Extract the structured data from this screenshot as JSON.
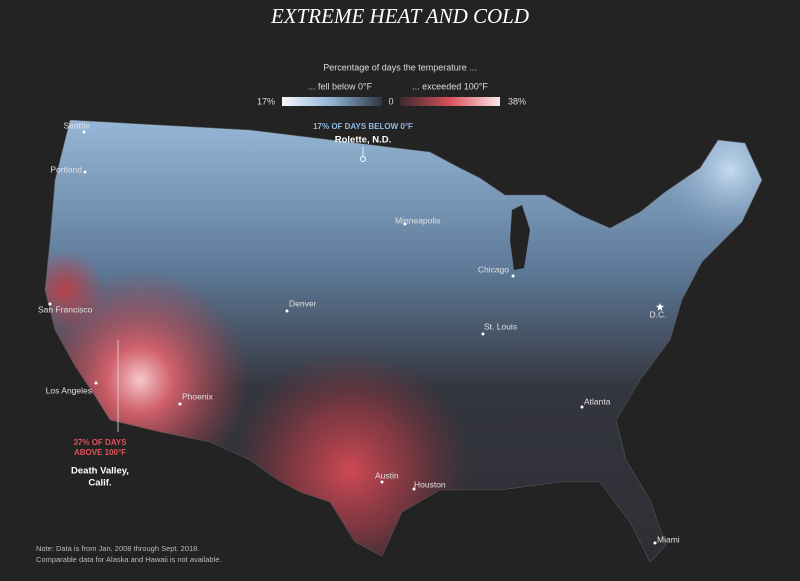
{
  "title": "EXTREME HEAT AND COLD",
  "legend": {
    "heading": "Percentage of days the temperature ...",
    "cold_label": "... fell below 0°F",
    "heat_label": "... exceeded 100°F",
    "cold_end": "17%",
    "zero": "0",
    "heat_end": "38%"
  },
  "annotations": {
    "cold": {
      "stat": "17% OF DAYS BELOW 0°F",
      "place": "Rolette, N.D."
    },
    "heat": {
      "stat": [
        "37% OF DAYS",
        "ABOVE 100°F"
      ],
      "place": [
        "Death Valley,",
        "Calif."
      ]
    }
  },
  "cities": [
    "Seattle",
    "Portland",
    "San Francisco",
    "Los Angeles",
    "Phoenix",
    "Denver",
    "Minneapolis",
    "Chicago",
    "St. Louis",
    "D.C.",
    "Atlanta",
    "Austin",
    "Houston",
    "Miami"
  ],
  "note": [
    "Note: Data is from Jan. 2008 through Sept. 2018.",
    "Comparable data for Alaska and Hawaii is not available."
  ]
}
